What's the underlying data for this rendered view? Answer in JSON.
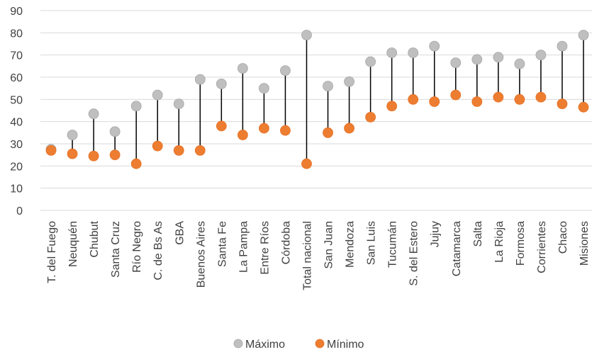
{
  "chart_data": {
    "type": "dot-range",
    "categories": [
      "T. del Fuego",
      "Neuquén",
      "Chubut",
      "Santa Cruz",
      "Río Negro",
      "C. de Bs As",
      "GBA",
      "Buenos Aires",
      "Santa Fe",
      "La Pampa",
      "Entre Ríos",
      "Córdoba",
      "Total nacional",
      "San Juan",
      "Mendoza",
      "San Luis",
      "Tucumán",
      "S. del Estero",
      "Jujuy",
      "Catamarca",
      "Salta",
      "La Rioja",
      "Formosa",
      "Corrientes",
      "Chaco",
      "Misiones"
    ],
    "series": [
      {
        "name": "Máximo",
        "color": "#bfbfbf",
        "values": [
          27.5,
          34,
          43.5,
          35.5,
          47,
          52,
          48,
          59,
          57,
          64,
          55,
          63,
          79,
          56,
          58,
          67,
          71,
          71,
          74,
          66.5,
          68,
          69,
          66,
          70,
          74,
          79
        ]
      },
      {
        "name": "Mínimo",
        "color": "#ed7d31",
        "values": [
          27,
          25.5,
          24.5,
          25,
          21,
          29,
          27,
          27,
          38,
          34,
          37,
          36,
          21,
          35,
          37,
          42,
          47,
          50,
          49,
          52,
          49,
          51,
          50,
          51,
          48,
          46.5
        ]
      }
    ],
    "yticks": [
      "0",
      "10",
      "20",
      "30",
      "40",
      "50",
      "60",
      "70",
      "80",
      "90"
    ],
    "ylim": [
      0,
      90
    ],
    "grid": true,
    "legend_position": "bottom"
  }
}
